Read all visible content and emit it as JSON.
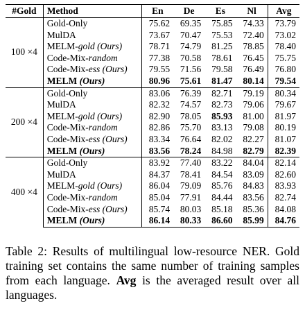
{
  "table": {
    "headers": [
      "#Gold",
      "Method",
      "En",
      "De",
      "Es",
      "Nl",
      "Avg"
    ],
    "groups": [
      {
        "gold": "100 ×4",
        "rows": [
          {
            "method": "Gold-Only",
            "method_italic": "",
            "method_suffix": "",
            "values": [
              "75.62",
              "69.35",
              "75.85",
              "74.33",
              "73.79"
            ],
            "bold": [
              false,
              false,
              false,
              false,
              false
            ]
          },
          {
            "method": "MulDA",
            "method_italic": "",
            "method_suffix": "",
            "values": [
              "73.67",
              "70.47",
              "75.53",
              "72.40",
              "73.02"
            ],
            "bold": [
              false,
              false,
              false,
              false,
              false
            ]
          },
          {
            "method": "MELM-",
            "method_italic": "gold",
            "method_suffix": " (Ours)",
            "values": [
              "78.71",
              "74.79",
              "81.25",
              "78.85",
              "78.40"
            ],
            "bold": [
              false,
              false,
              false,
              false,
              false
            ]
          },
          {
            "method": "Code-Mix-",
            "method_italic": "random",
            "method_suffix": "",
            "values": [
              "77.38",
              "70.58",
              "78.61",
              "76.45",
              "75.75"
            ],
            "bold": [
              false,
              false,
              false,
              false,
              false
            ]
          },
          {
            "method": "Code-Mix-",
            "method_italic": "ess",
            "method_suffix": " (Ours)",
            "values": [
              "79.55",
              "71.56",
              "79.58",
              "76.49",
              "76.80"
            ],
            "bold": [
              false,
              false,
              false,
              false,
              false
            ]
          },
          {
            "method": "MELM ",
            "method_italic": "(Ours)",
            "method_suffix": "",
            "values": [
              "80.96",
              "75.61",
              "81.47",
              "80.14",
              "79.54"
            ],
            "bold": [
              true,
              true,
              true,
              true,
              true
            ]
          }
        ]
      },
      {
        "gold": "200 ×4",
        "rows": [
          {
            "method": "Gold-Only",
            "method_italic": "",
            "method_suffix": "",
            "values": [
              "83.06",
              "76.39",
              "82.71",
              "79.19",
              "80.34"
            ],
            "bold": [
              false,
              false,
              false,
              false,
              false
            ]
          },
          {
            "method": "MulDA",
            "method_italic": "",
            "method_suffix": "",
            "values": [
              "82.32",
              "74.57",
              "82.73",
              "79.06",
              "79.67"
            ],
            "bold": [
              false,
              false,
              false,
              false,
              false
            ]
          },
          {
            "method": "MELM-",
            "method_italic": "gold",
            "method_suffix": " (Ours)",
            "values": [
              "82.90",
              "78.05",
              "85.93",
              "81.00",
              "81.97"
            ],
            "bold": [
              false,
              false,
              true,
              false,
              false
            ]
          },
          {
            "method": "Code-Mix-",
            "method_italic": "random",
            "method_suffix": "",
            "values": [
              "82.86",
              "75.70",
              "83.13",
              "79.08",
              "80.19"
            ],
            "bold": [
              false,
              false,
              false,
              false,
              false
            ]
          },
          {
            "method": "Code-Mix-",
            "method_italic": "ess",
            "method_suffix": " (Ours)",
            "values": [
              "83.34",
              "76.64",
              "82.02",
              "82.27",
              "81.07"
            ],
            "bold": [
              false,
              false,
              false,
              false,
              false
            ]
          },
          {
            "method": "MELM ",
            "method_italic": "(Ours)",
            "method_suffix": "",
            "values": [
              "83.56",
              "78.24",
              "84.98",
              "82.79",
              "82.39"
            ],
            "bold": [
              true,
              true,
              false,
              true,
              true
            ]
          }
        ]
      },
      {
        "gold": "400 ×4",
        "rows": [
          {
            "method": "Gold-Only",
            "method_italic": "",
            "method_suffix": "",
            "values": [
              "83.92",
              "77.40",
              "83.22",
              "84.04",
              "82.14"
            ],
            "bold": [
              false,
              false,
              false,
              false,
              false
            ]
          },
          {
            "method": "MulDA",
            "method_italic": "",
            "method_suffix": "",
            "values": [
              "84.37",
              "78.41",
              "84.54",
              "83.09",
              "82.60"
            ],
            "bold": [
              false,
              false,
              false,
              false,
              false
            ]
          },
          {
            "method": "MELM-",
            "method_italic": "gold",
            "method_suffix": " (Ours)",
            "values": [
              "86.04",
              "79.09",
              "85.76",
              "84.83",
              "83.93"
            ],
            "bold": [
              false,
              false,
              false,
              false,
              false
            ]
          },
          {
            "method": "Code-Mix-",
            "method_italic": "random",
            "method_suffix": "",
            "values": [
              "85.04",
              "77.91",
              "84.44",
              "83.56",
              "82.74"
            ],
            "bold": [
              false,
              false,
              false,
              false,
              false
            ]
          },
          {
            "method": "Code-Mix-",
            "method_italic": "ess",
            "method_suffix": " (Ours)",
            "values": [
              "85.74",
              "80.03",
              "85.18",
              "85.36",
              "84.08"
            ],
            "bold": [
              false,
              false,
              false,
              false,
              false
            ]
          },
          {
            "method": "MELM ",
            "method_italic": "(Ours)",
            "method_suffix": "",
            "values": [
              "86.14",
              "80.33",
              "86.60",
              "85.99",
              "84.76"
            ],
            "bold": [
              true,
              true,
              true,
              true,
              true
            ]
          }
        ]
      }
    ]
  },
  "caption": {
    "prefix": "Table 2:  Results of multilingual low-resource NER. Gold training set contains the same number of training samples from each language. ",
    "bold_term": "Avg",
    "suffix": " is the averaged result over all languages."
  }
}
